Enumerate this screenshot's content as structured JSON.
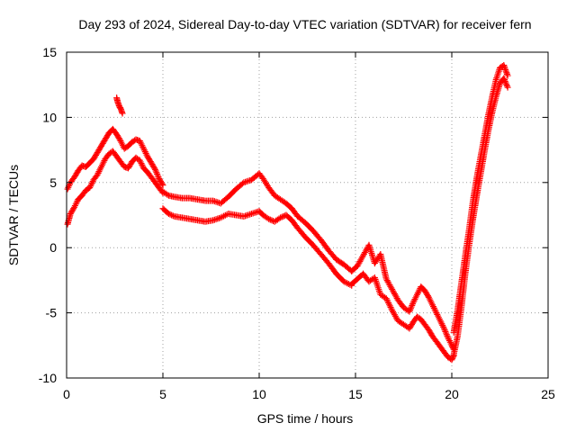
{
  "chart_data": {
    "type": "scatter",
    "title": "Day 293 of 2024, Sidereal Day-to-day VTEC variation (SDTVAR) for receiver fern",
    "xlabel": "GPS time / hours",
    "ylabel": "SDTVAR / TECUs",
    "xlim": [
      0,
      25
    ],
    "ylim": [
      -10,
      15
    ],
    "xticks": [
      0,
      5,
      10,
      15,
      20,
      25
    ],
    "yticks": [
      -10,
      -5,
      0,
      5,
      10,
      15
    ],
    "grid": true,
    "marker": "+",
    "color": "#ff0000",
    "series": [
      {
        "name": "band-upper",
        "x": [
          0.05,
          0.2,
          0.4,
          0.6,
          0.8,
          1.0,
          1.2,
          1.4,
          1.6,
          1.8,
          2.0,
          2.2,
          2.4,
          2.6,
          2.8,
          3.0,
          3.2,
          3.4,
          3.6,
          3.8,
          4.0,
          4.2,
          4.4,
          4.6,
          4.8,
          5.0
        ],
        "y": [
          4.5,
          5.0,
          5.4,
          5.9,
          6.3,
          6.2,
          6.5,
          6.8,
          7.3,
          7.8,
          8.3,
          8.8,
          9.1,
          8.7,
          8.2,
          7.6,
          7.8,
          8.1,
          8.3,
          8.2,
          7.6,
          7.0,
          6.5,
          6.0,
          5.3,
          4.8
        ]
      },
      {
        "name": "band-lower",
        "x": [
          0.05,
          0.2,
          0.4,
          0.6,
          0.8,
          1.0,
          1.2,
          1.4,
          1.6,
          1.8,
          2.0,
          2.2,
          2.4,
          2.6,
          2.8,
          3.0,
          3.2,
          3.4,
          3.6,
          3.8,
          4.0,
          4.2,
          4.4,
          4.6,
          4.8,
          5.0
        ],
        "y": [
          1.8,
          2.6,
          3.1,
          3.7,
          4.0,
          4.4,
          4.6,
          5.2,
          5.6,
          6.2,
          6.8,
          7.2,
          7.4,
          7.0,
          6.6,
          6.2,
          6.1,
          6.6,
          6.9,
          6.7,
          6.1,
          5.8,
          5.4,
          5.0,
          4.6,
          4.2
        ]
      },
      {
        "name": "spike-2.7h",
        "x": [
          2.6,
          2.65,
          2.7,
          2.75,
          2.8,
          2.85,
          2.9
        ],
        "y": [
          11.5,
          11.2,
          11.0,
          10.8,
          10.7,
          10.5,
          10.3
        ]
      },
      {
        "name": "midday-upper",
        "x": [
          5.0,
          5.3,
          5.6,
          6.0,
          6.4,
          6.8,
          7.2,
          7.6,
          8.0,
          8.4,
          8.8,
          9.2,
          9.6,
          10.0,
          10.2,
          10.5,
          10.8,
          11.1,
          11.4,
          11.7,
          12.0,
          12.4,
          12.8,
          13.2,
          13.6,
          14.0,
          14.4,
          14.8
        ],
        "y": [
          4.3,
          4.0,
          3.9,
          3.8,
          3.8,
          3.7,
          3.6,
          3.6,
          3.4,
          3.9,
          4.5,
          5.0,
          5.2,
          5.7,
          5.3,
          4.6,
          4.0,
          3.7,
          3.4,
          3.0,
          2.4,
          1.9,
          1.3,
          0.6,
          -0.2,
          -0.9,
          -1.3,
          -1.8
        ]
      },
      {
        "name": "midday-lower",
        "x": [
          5.0,
          5.3,
          5.6,
          6.0,
          6.4,
          6.8,
          7.2,
          7.6,
          8.0,
          8.4,
          8.8,
          9.2,
          9.6,
          10.0,
          10.2,
          10.5,
          10.8,
          11.1,
          11.4,
          11.7,
          12.0,
          12.4,
          12.8,
          13.2,
          13.6,
          14.0,
          14.4,
          14.8
        ],
        "y": [
          3.0,
          2.6,
          2.4,
          2.3,
          2.2,
          2.1,
          2.0,
          2.1,
          2.3,
          2.6,
          2.5,
          2.4,
          2.6,
          2.8,
          2.5,
          2.2,
          2.0,
          2.3,
          2.5,
          2.1,
          1.5,
          0.8,
          0.2,
          -0.5,
          -1.2,
          -2.0,
          -2.6,
          -2.9
        ]
      },
      {
        "name": "afternoon-upper",
        "x": [
          14.8,
          15.1,
          15.4,
          15.7,
          16.0,
          16.3,
          16.6,
          16.9,
          17.2,
          17.5,
          17.8,
          18.0,
          18.2,
          18.4,
          18.6,
          18.8,
          19.0,
          19.2,
          19.4,
          19.6,
          19.8,
          20.0,
          20.1
        ],
        "y": [
          -1.8,
          -1.4,
          -0.6,
          0.2,
          -1.2,
          -0.5,
          -2.4,
          -3.2,
          -4.0,
          -4.6,
          -4.9,
          -4.2,
          -3.6,
          -3.0,
          -3.3,
          -3.8,
          -4.4,
          -5.0,
          -5.6,
          -6.2,
          -6.9,
          -7.5,
          -7.8
        ]
      },
      {
        "name": "afternoon-lower",
        "x": [
          14.8,
          15.1,
          15.4,
          15.7,
          16.0,
          16.3,
          16.6,
          16.9,
          17.2,
          17.5,
          17.8,
          18.0,
          18.2,
          18.4,
          18.6,
          18.8,
          19.0,
          19.2,
          19.4,
          19.6,
          19.8,
          20.0,
          20.1
        ],
        "y": [
          -2.8,
          -2.4,
          -2.0,
          -2.6,
          -2.3,
          -3.6,
          -3.9,
          -4.8,
          -5.6,
          -5.9,
          -6.2,
          -5.7,
          -5.3,
          -5.5,
          -5.9,
          -6.3,
          -6.8,
          -7.2,
          -7.6,
          -8.0,
          -8.4,
          -8.6,
          -8.3
        ]
      },
      {
        "name": "recovery-upper",
        "x": [
          20.1,
          20.3,
          20.5,
          20.7,
          20.9,
          21.1,
          21.3,
          21.5,
          21.7,
          21.9,
          22.1,
          22.3,
          22.5,
          22.7,
          22.9
        ],
        "y": [
          -6.5,
          -4.8,
          -2.7,
          -0.6,
          1.4,
          3.6,
          5.4,
          7.0,
          8.6,
          10.2,
          11.6,
          12.9,
          13.8,
          14.0,
          13.2
        ]
      },
      {
        "name": "recovery-lower",
        "x": [
          20.1,
          20.3,
          20.5,
          20.7,
          20.9,
          21.1,
          21.3,
          21.5,
          21.7,
          21.9,
          22.1,
          22.3,
          22.5,
          22.7,
          22.9
        ],
        "y": [
          -8.2,
          -6.8,
          -4.6,
          -2.0,
          0.2,
          2.2,
          4.0,
          5.7,
          7.4,
          9.0,
          10.4,
          11.6,
          12.6,
          13.0,
          12.3
        ]
      }
    ]
  }
}
